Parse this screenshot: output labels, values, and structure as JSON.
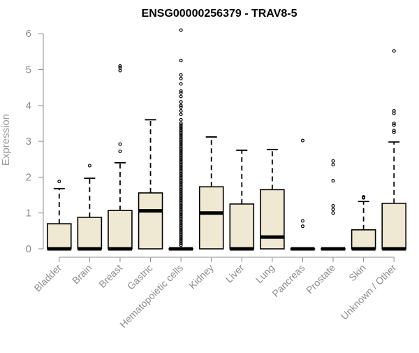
{
  "chart_data": {
    "type": "boxplot",
    "title": "ENSG00000256379 - TRAV8-5",
    "ylabel": "Expression",
    "xlabel": "",
    "ylim": [
      0,
      6.2
    ],
    "yticks": [
      0,
      1,
      2,
      3,
      4,
      5,
      6
    ],
    "grid": false,
    "box_color": "#efe8d2",
    "categories": [
      "Bladder",
      "Brain",
      "Breast",
      "Gastric",
      "Hematopoietic cells",
      "Kidney",
      "Liver",
      "Lung",
      "Pancreas",
      "Prostate",
      "Skin",
      "Unknown / Other"
    ],
    "boxes": [
      {
        "min": 0,
        "q1": 0,
        "median": 0,
        "q3": 0.7,
        "max": 1.68,
        "outliers": [
          1.88
        ]
      },
      {
        "min": 0,
        "q1": 0,
        "median": 0,
        "q3": 0.88,
        "max": 1.97,
        "outliers": [
          2.32
        ]
      },
      {
        "min": 0,
        "q1": 0,
        "median": 0,
        "q3": 1.07,
        "max": 2.4,
        "outliers": [
          2.72,
          2.92,
          4.97,
          5.05,
          5.1
        ]
      },
      {
        "min": 0,
        "q1": 0,
        "median": 1.06,
        "q3": 1.56,
        "max": 3.6,
        "outliers": []
      },
      {
        "min": 0,
        "q1": 0,
        "median": 0,
        "q3": 0,
        "max": 0,
        "outliers": [
          6.1,
          5.25,
          4.85,
          4.75,
          4.6,
          4.4,
          4.35,
          4.25,
          4.1,
          4.0,
          3.95,
          3.85,
          3.75,
          3.6,
          3.5,
          3.45,
          3.4,
          3.35,
          3.3,
          3.25,
          3.2,
          3.15,
          3.1,
          3.05,
          3.0,
          2.95,
          2.9,
          2.85,
          2.8,
          2.75,
          2.7,
          2.65,
          2.6,
          2.55,
          2.5,
          2.45,
          2.4,
          2.35,
          2.3,
          2.25,
          2.2,
          2.15,
          2.1,
          2.05,
          2.0,
          1.95,
          1.9,
          1.85,
          1.8,
          1.75,
          1.7,
          1.65,
          1.6,
          1.55,
          1.5,
          1.45,
          1.4,
          1.35,
          1.3,
          1.25,
          1.2,
          1.15,
          1.1,
          1.05,
          1.0,
          0.95,
          0.9,
          0.85,
          0.8,
          0.75,
          0.7,
          0.65,
          0.6,
          0.55,
          0.5,
          0.45,
          0.4,
          0.35,
          0.3,
          0.25,
          0.2,
          0.15,
          0.1
        ]
      },
      {
        "min": 0,
        "q1": 0,
        "median": 1.0,
        "q3": 1.73,
        "max": 3.12,
        "outliers": []
      },
      {
        "min": 0,
        "q1": 0,
        "median": 0,
        "q3": 1.25,
        "max": 2.75,
        "outliers": []
      },
      {
        "min": 0,
        "q1": 0,
        "median": 0.33,
        "q3": 1.65,
        "max": 2.77,
        "outliers": []
      },
      {
        "min": 0,
        "q1": 0,
        "median": 0,
        "q3": 0,
        "max": 0,
        "outliers": [
          3.02,
          0.78,
          0.63
        ]
      },
      {
        "min": 0,
        "q1": 0,
        "median": 0,
        "q3": 0,
        "max": 0,
        "outliers": [
          2.45,
          2.35,
          1.9,
          1.2,
          1.1,
          1.0
        ]
      },
      {
        "min": 0,
        "q1": 0,
        "median": 0,
        "q3": 0.53,
        "max": 1.32,
        "outliers": [
          1.42,
          1.45
        ]
      },
      {
        "min": 0,
        "q1": 0,
        "median": 0,
        "q3": 1.27,
        "max": 2.98,
        "outliers": [
          5.52,
          3.85,
          3.78,
          3.5,
          3.45,
          3.3,
          3.25
        ]
      }
    ]
  }
}
